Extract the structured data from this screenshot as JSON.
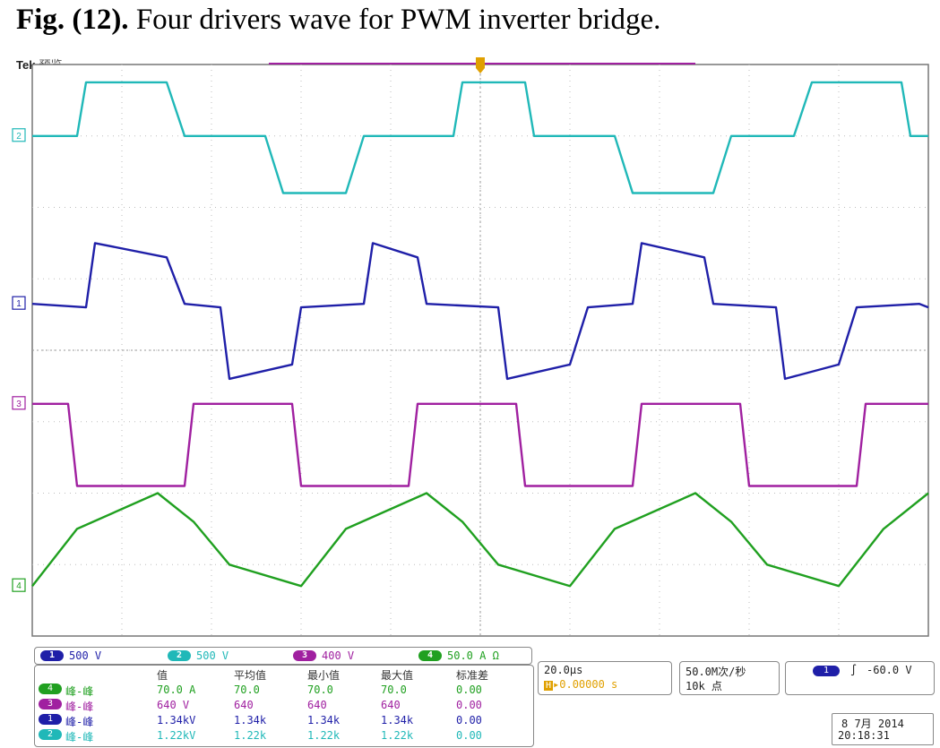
{
  "caption": {
    "bold": "Fig. (12).",
    "text": " Four drivers wave for PWM inverter bridge."
  },
  "header": {
    "brand": "Tek",
    "mode": "预览"
  },
  "colors": {
    "ch1": "#1f1fa8",
    "ch2": "#20b8b8",
    "ch3": "#a020a0",
    "ch4": "#20a020",
    "grid": "#bdbdbd",
    "trigger": "#e0a000"
  },
  "chart_data": {
    "type": "line",
    "title": "",
    "xlabel": "",
    "ylabel": "",
    "xlim": [
      -5,
      5
    ],
    "ylim": [
      -4,
      4
    ],
    "grid": true,
    "time_per_div": "20.0μs",
    "series": [
      {
        "channel": "2",
        "label": "2",
        "color": "#20b8b8",
        "scale": "500 V",
        "x": [
          -5,
          -4.5,
          -4.4,
          -3.5,
          -3.3,
          -2.4,
          -2.2,
          -1.5,
          -1.3,
          -0.3,
          -0.2,
          0.5,
          0.6,
          1.5,
          1.7,
          2.6,
          2.8,
          3.5,
          3.7,
          4.7,
          4.8,
          5
        ],
        "y": [
          3,
          3,
          3.75,
          3.75,
          3,
          3,
          2.2,
          2.2,
          3,
          3,
          3.75,
          3.75,
          3,
          3,
          2.2,
          2.2,
          3,
          3,
          3.75,
          3.75,
          3,
          3
        ]
      },
      {
        "channel": "1",
        "label": "1",
        "color": "#1f1fa8",
        "scale": "500 V",
        "x": [
          -5,
          -4.4,
          -4.3,
          -3.5,
          -3.3,
          -2.9,
          -2.8,
          -2.1,
          -2.0,
          -1.3,
          -1.2,
          -0.7,
          -0.6,
          0.2,
          0.3,
          1.0,
          1.2,
          1.7,
          1.8,
          2.5,
          2.6,
          3.3,
          3.4,
          4.0,
          4.2,
          4.9,
          5
        ],
        "y": [
          0.65,
          0.6,
          1.5,
          1.3,
          0.65,
          0.6,
          -0.4,
          -0.2,
          0.6,
          0.65,
          1.5,
          1.3,
          0.65,
          0.6,
          -0.4,
          -0.2,
          0.6,
          0.65,
          1.5,
          1.3,
          0.65,
          0.6,
          -0.4,
          -0.2,
          0.6,
          0.65,
          0.6
        ]
      },
      {
        "channel": "3",
        "label": "3",
        "color": "#a020a0",
        "scale": "400 V",
        "x": [
          -5,
          -4.6,
          -4.5,
          -3.3,
          -3.2,
          -2.1,
          -2.0,
          -0.8,
          -0.7,
          0.4,
          0.5,
          1.7,
          1.8,
          2.9,
          3.0,
          4.2,
          4.3,
          5
        ],
        "y": [
          -0.75,
          -0.75,
          -1.9,
          -1.9,
          -0.75,
          -0.75,
          -1.9,
          -1.9,
          -0.75,
          -0.75,
          -1.9,
          -1.9,
          -0.75,
          -0.75,
          -1.9,
          -1.9,
          -0.75,
          -0.75
        ]
      },
      {
        "channel": "4",
        "label": "4",
        "color": "#20a020",
        "scale": "50.0 A Ω",
        "x": [
          -5,
          -4.5,
          -3.6,
          -3.2,
          -2.8,
          -2.0,
          -1.5,
          -0.6,
          -0.2,
          0.2,
          1.0,
          1.5,
          2.4,
          2.8,
          3.2,
          4.0,
          4.5,
          5
        ],
        "y": [
          -3.3,
          -2.5,
          -2.0,
          -2.4,
          -3.0,
          -3.3,
          -2.5,
          -2.0,
          -2.4,
          -3.0,
          -3.3,
          -2.5,
          -2.0,
          -2.4,
          -3.0,
          -3.3,
          -2.5,
          -2.0
        ]
      }
    ]
  },
  "channel_bar": [
    {
      "num": "1",
      "value": "500 V",
      "color": "#1f1fa8"
    },
    {
      "num": "2",
      "value": "500 V",
      "color": "#20b8b8"
    },
    {
      "num": "3",
      "value": "400 V",
      "color": "#a020a0"
    },
    {
      "num": "4",
      "value": "50.0 A Ω",
      "color": "#20a020"
    }
  ],
  "measurements": {
    "headers": [
      "值",
      "平均值",
      "最小值",
      "最大值",
      "标准差"
    ],
    "rows": [
      {
        "ch": "4",
        "color": "#20a020",
        "label": "峰-峰",
        "value": "70.0 A",
        "mean": "70.0",
        "min": "70.0",
        "max": "70.0",
        "std": "0.00"
      },
      {
        "ch": "3",
        "color": "#a020a0",
        "label": "峰-峰",
        "value": "640 V",
        "mean": "640",
        "min": "640",
        "max": "640",
        "std": "0.00"
      },
      {
        "ch": "1",
        "color": "#1f1fa8",
        "label": "峰-峰",
        "value": "1.34kV",
        "mean": "1.34k",
        "min": "1.34k",
        "max": "1.34k",
        "std": "0.00"
      },
      {
        "ch": "2",
        "color": "#20b8b8",
        "label": "峰-峰",
        "value": "1.22kV",
        "mean": "1.22k",
        "min": "1.22k",
        "max": "1.22k",
        "std": "0.00"
      }
    ]
  },
  "timebase": {
    "scale": "20.0μs",
    "delay": "▸0.00000 s",
    "delay_marker": "H"
  },
  "acquisition": {
    "rate": "50.0M次/秒",
    "points": "10k 点"
  },
  "trigger": {
    "channel": "1",
    "slope": "∫",
    "level": "-60.0 V"
  },
  "datetime": {
    "date": "8 7月 2014",
    "time": "20:18:31"
  }
}
